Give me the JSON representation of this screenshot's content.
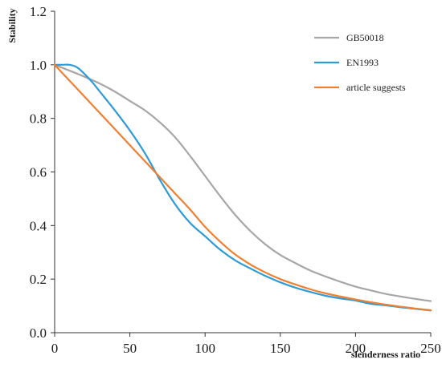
{
  "chart_data": {
    "type": "line",
    "title": "",
    "xlabel": "slenderness ratio",
    "ylabel": "Stability",
    "xlim": [
      0,
      250
    ],
    "ylim": [
      0,
      1.2
    ],
    "xticks": [
      0,
      50,
      100,
      150,
      200,
      250
    ],
    "yticks": [
      0.0,
      0.2,
      0.4,
      0.6,
      0.8,
      1.0,
      1.2
    ],
    "ytick_labels": [
      "0.0",
      "0.2",
      "0.4",
      "0.6",
      "0.8",
      "1.0",
      "1.2"
    ],
    "xtick_labels": [
      "0",
      "50",
      "100",
      "150",
      "200",
      "250"
    ],
    "grid": false,
    "legend": "top-right",
    "series": [
      {
        "name": "GB50018",
        "color": "#a6a6a6",
        "x": [
          0,
          10,
          20,
          30,
          40,
          50,
          60,
          70,
          80,
          90,
          100,
          110,
          120,
          130,
          140,
          150,
          160,
          170,
          180,
          190,
          200,
          210,
          220,
          230,
          240,
          250
        ],
        "y": [
          1.0,
          0.978,
          0.955,
          0.93,
          0.9,
          0.865,
          0.83,
          0.785,
          0.73,
          0.66,
          0.585,
          0.51,
          0.44,
          0.38,
          0.33,
          0.29,
          0.26,
          0.232,
          0.21,
          0.19,
          0.172,
          0.158,
          0.145,
          0.135,
          0.126,
          0.118
        ]
      },
      {
        "name": "EN1993",
        "color": "#2e9bd6",
        "x": [
          0,
          5,
          10,
          15,
          20,
          25,
          30,
          40,
          50,
          60,
          70,
          80,
          90,
          100,
          110,
          120,
          130,
          140,
          150,
          160,
          170,
          180,
          190,
          200,
          210,
          220,
          230,
          240,
          250
        ],
        "y": [
          1.0,
          1.0,
          1.0,
          0.99,
          0.965,
          0.935,
          0.9,
          0.83,
          0.755,
          0.67,
          0.57,
          0.48,
          0.41,
          0.36,
          0.31,
          0.27,
          0.24,
          0.212,
          0.188,
          0.168,
          0.152,
          0.138,
          0.128,
          0.12,
          0.108,
          0.102,
          0.095,
          0.089,
          0.083
        ]
      },
      {
        "name": "article suggests",
        "color": "#f07f32",
        "x": [
          0,
          10,
          20,
          30,
          40,
          50,
          60,
          70,
          80,
          90,
          100,
          110,
          120,
          130,
          140,
          150,
          160,
          170,
          180,
          190,
          200,
          210,
          220,
          230,
          240,
          250
        ],
        "y": [
          1.0,
          0.94,
          0.88,
          0.82,
          0.76,
          0.7,
          0.64,
          0.58,
          0.52,
          0.46,
          0.395,
          0.34,
          0.292,
          0.255,
          0.225,
          0.2,
          0.18,
          0.162,
          0.147,
          0.135,
          0.124,
          0.114,
          0.105,
          0.097,
          0.09,
          0.084
        ]
      }
    ]
  }
}
